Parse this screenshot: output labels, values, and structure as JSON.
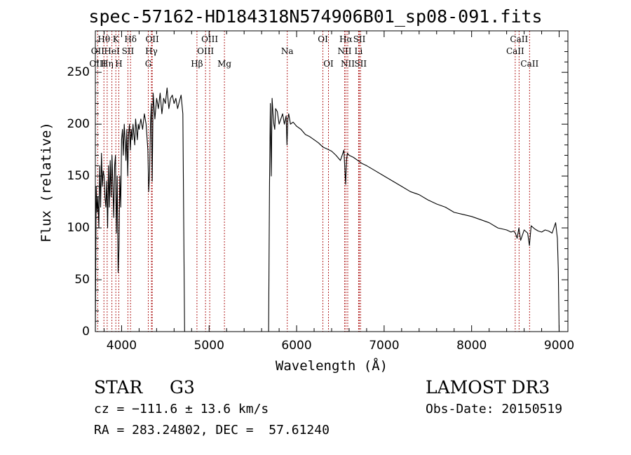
{
  "chart_data": {
    "type": "line",
    "title": "spec-57162-HD184318N574906B01_sp08-091.fits",
    "xlabel": "Wavelength (Å)",
    "ylabel": "Flux (relative)",
    "xlim": [
      3700,
      9100
    ],
    "ylim": [
      0,
      290
    ],
    "xticks": [
      4000,
      5000,
      6000,
      7000,
      8000,
      9000
    ],
    "yticks": [
      0,
      50,
      100,
      150,
      200,
      250
    ],
    "grid": false,
    "colors": {
      "spectrum": "#000000",
      "lines": "#b22222"
    },
    "series": [
      {
        "x": [
          3700,
          3710,
          3720,
          3730,
          3740,
          3750,
          3760,
          3770,
          3780,
          3790,
          3800,
          3810,
          3820,
          3830,
          3840,
          3850,
          3860,
          3870,
          3880,
          3890,
          3900,
          3910,
          3920,
          3930,
          3940,
          3950,
          3960,
          3970,
          3980,
          3990,
          4000,
          4010,
          4020,
          4030,
          4040,
          4050,
          4060,
          4070,
          4080,
          4090,
          4100,
          4110,
          4120,
          4130,
          4140,
          4150,
          4160,
          4170,
          4180,
          4190,
          4200,
          4220,
          4240,
          4260,
          4280,
          4300,
          4310,
          4320,
          4330,
          4340,
          4350,
          4360,
          4380,
          4400,
          4420,
          4440,
          4460,
          4480,
          4500,
          4520,
          4540,
          4560,
          4580,
          4600,
          4620,
          4640,
          4660,
          4680,
          4700,
          4710,
          4720,
          5680,
          5690,
          5700,
          5710,
          5720,
          5730,
          5740,
          5750,
          5760,
          5780,
          5800,
          5820,
          5840,
          5860,
          5880,
          5890,
          5900,
          5910,
          5930,
          5960,
          6000,
          6050,
          6100,
          6150,
          6200,
          6250,
          6300,
          6350,
          6400,
          6450,
          6500,
          6540,
          6560,
          6570,
          6580,
          6600,
          6650,
          6700,
          6750,
          6800,
          6900,
          7000,
          7100,
          7200,
          7300,
          7400,
          7500,
          7600,
          7700,
          7800,
          7900,
          8000,
          8100,
          8200,
          8300,
          8400,
          8450,
          8480,
          8500,
          8520,
          8540,
          8560,
          8600,
          8640,
          8660,
          8680,
          8720,
          8760,
          8800,
          8840,
          8880,
          8920,
          8960,
          8980,
          8990,
          9000
        ],
        "y": [
          0,
          140,
          115,
          130,
          100,
          160,
          120,
          172,
          140,
          155,
          150,
          130,
          120,
          145,
          100,
          160,
          120,
          165,
          130,
          170,
          140,
          110,
          160,
          170,
          95,
          150,
          57,
          80,
          150,
          120,
          185,
          195,
          170,
          200,
          185,
          165,
          195,
          150,
          190,
          200,
          175,
          195,
          185,
          200,
          190,
          180,
          205,
          195,
          185,
          200,
          195,
          205,
          195,
          210,
          200,
          175,
          135,
          155,
          200,
          220,
          145,
          230,
          205,
          225,
          215,
          230,
          210,
          225,
          220,
          235,
          215,
          225,
          228,
          220,
          225,
          215,
          222,
          228,
          210,
          100,
          0,
          0,
          140,
          220,
          150,
          225,
          210,
          200,
          195,
          215,
          212,
          200,
          205,
          210,
          200,
          208,
          180,
          205,
          210,
          200,
          202,
          198,
          195,
          190,
          188,
          185,
          182,
          178,
          176,
          174,
          170,
          165,
          175,
          142,
          165,
          172,
          170,
          168,
          165,
          162,
          160,
          155,
          150,
          145,
          140,
          135,
          132,
          127,
          123,
          120,
          115,
          113,
          111,
          108,
          105,
          100,
          98,
          96,
          97,
          95,
          90,
          100,
          88,
          98,
          95,
          83,
          102,
          99,
          97,
          96,
          98,
          97,
          95,
          105,
          90,
          60,
          0
        ]
      }
    ],
    "spectral_lines": [
      {
        "label": "Hθ",
        "wavelength": 3798,
        "row": 1
      },
      {
        "label": "OII",
        "wavelength": 3727,
        "row": 2
      },
      {
        "label": "OIII",
        "wavelength": 3727,
        "row": 3
      },
      {
        "label": "Hη",
        "wavelength": 3835,
        "row": 3
      },
      {
        "label": "HeI",
        "wavelength": 3889,
        "row": 2
      },
      {
        "label": "K",
        "wavelength": 3934,
        "row": 1
      },
      {
        "label": "H",
        "wavelength": 3968,
        "row": 3
      },
      {
        "label": "Hδ",
        "wavelength": 4102,
        "row": 1
      },
      {
        "label": "SII",
        "wavelength": 4072,
        "row": 2
      },
      {
        "label": "OII",
        "wavelength": 4350,
        "row": 1
      },
      {
        "label": "Hγ",
        "wavelength": 4341,
        "row": 2
      },
      {
        "label": "G",
        "wavelength": 4305,
        "row": 3
      },
      {
        "label": "Hβ",
        "wavelength": 4861,
        "row": 3
      },
      {
        "label": "OIII",
        "wavelength": 5007,
        "row": 1
      },
      {
        "label": "OIII",
        "wavelength": 4959,
        "row": 2
      },
      {
        "label": "Mg",
        "wavelength": 5175,
        "row": 3
      },
      {
        "label": "Na",
        "wavelength": 5893,
        "row": 2
      },
      {
        "label": "OI",
        "wavelength": 6300,
        "row": 1
      },
      {
        "label": "OI",
        "wavelength": 6364,
        "row": 3
      },
      {
        "label": "Hα",
        "wavelength": 6563,
        "row": 1
      },
      {
        "label": "NII",
        "wavelength": 6548,
        "row": 2
      },
      {
        "label": "NII",
        "wavelength": 6584,
        "row": 3
      },
      {
        "label": "SII",
        "wavelength": 6717,
        "row": 1
      },
      {
        "label": "Li",
        "wavelength": 6708,
        "row": 2
      },
      {
        "label": "SII",
        "wavelength": 6731,
        "row": 3
      },
      {
        "label": "CaII",
        "wavelength": 8542,
        "row": 1
      },
      {
        "label": "CaII",
        "wavelength": 8498,
        "row": 2
      },
      {
        "label": "CaII",
        "wavelength": 8662,
        "row": 3
      }
    ],
    "info": {
      "class_label": "STAR",
      "subclass": "G3",
      "survey": "LAMOST DR3",
      "cz": "cz = −111.6 ± 13.6 km/s",
      "obs_date": "Obs-Date: 20150519",
      "coords": "RA = 283.24802, DEC =  57.61240"
    }
  }
}
